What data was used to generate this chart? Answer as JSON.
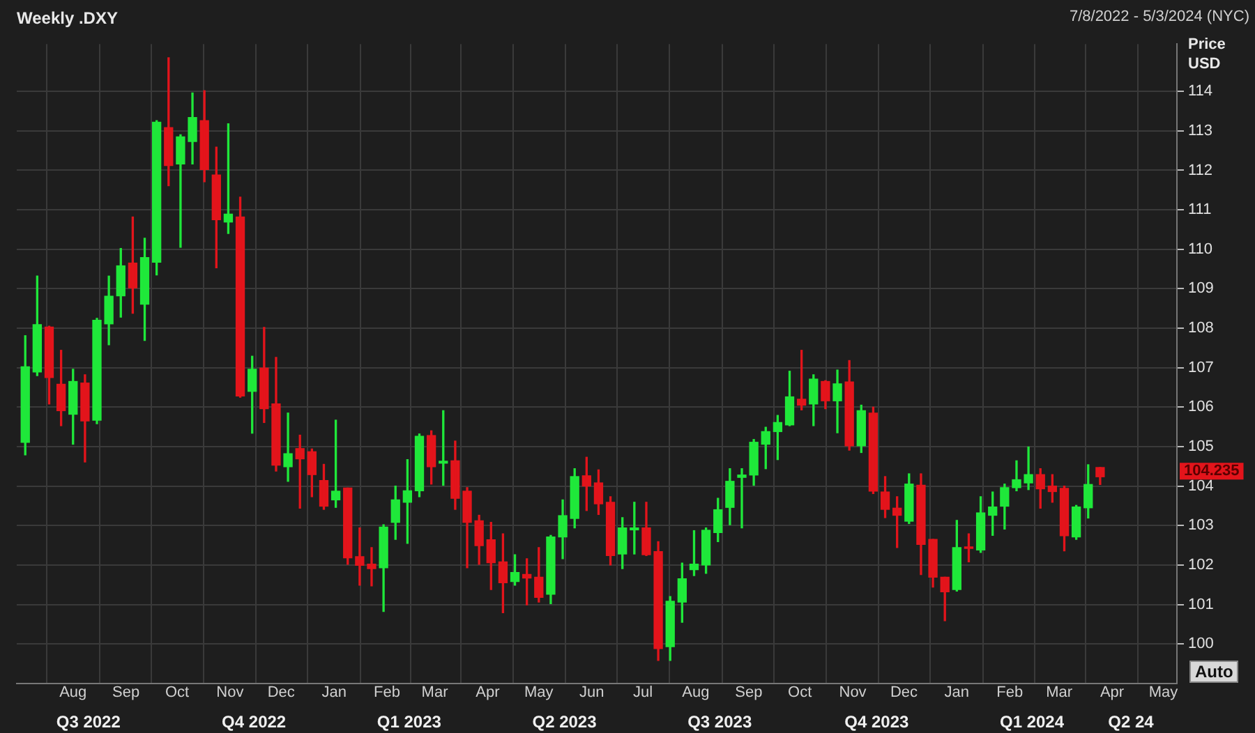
{
  "chart_data": {
    "type": "candlestick",
    "title": "Weekly .DXY",
    "subtitle": "7/8/2022 - 5/3/2024 (NYC)",
    "ylabel": "Price\nUSD",
    "x": [
      "2022-07-04",
      "2022-07-11",
      "2022-07-18",
      "2022-07-25",
      "2022-08-01",
      "2022-08-08",
      "2022-08-15",
      "2022-08-22",
      "2022-08-29",
      "2022-09-05",
      "2022-09-12",
      "2022-09-19",
      "2022-09-26",
      "2022-10-03",
      "2022-10-10",
      "2022-10-17",
      "2022-10-24",
      "2022-10-31",
      "2022-11-07",
      "2022-11-14",
      "2022-11-21",
      "2022-11-28",
      "2022-12-05",
      "2022-12-12",
      "2022-12-19",
      "2022-12-26",
      "2023-01-02",
      "2023-01-09",
      "2023-01-16",
      "2023-01-23",
      "2023-01-30",
      "2023-02-06",
      "2023-02-13",
      "2023-02-20",
      "2023-02-27",
      "2023-03-06",
      "2023-03-13",
      "2023-03-20",
      "2023-03-27",
      "2023-04-03",
      "2023-04-10",
      "2023-04-17",
      "2023-04-24",
      "2023-05-01",
      "2023-05-08",
      "2023-05-15",
      "2023-05-22",
      "2023-05-29",
      "2023-06-05",
      "2023-06-12",
      "2023-06-19",
      "2023-06-26",
      "2023-07-03",
      "2023-07-10",
      "2023-07-17",
      "2023-07-24",
      "2023-07-31",
      "2023-08-07",
      "2023-08-14",
      "2023-08-21",
      "2023-08-28",
      "2023-09-04",
      "2023-09-11",
      "2023-09-18",
      "2023-09-25",
      "2023-10-02",
      "2023-10-09",
      "2023-10-16",
      "2023-10-23",
      "2023-10-30",
      "2023-11-06",
      "2023-11-13",
      "2023-11-20",
      "2023-11-27",
      "2023-12-04",
      "2023-12-11",
      "2023-12-18",
      "2023-12-25",
      "2024-01-01",
      "2024-01-08",
      "2024-01-15",
      "2024-01-22",
      "2024-01-29",
      "2024-02-05",
      "2024-02-12",
      "2024-02-19",
      "2024-02-26",
      "2024-03-04",
      "2024-03-11",
      "2024-03-18",
      "2024-03-25"
    ],
    "ohlc": [
      [
        105.11,
        107.81,
        104.79,
        107.02
      ],
      [
        106.89,
        109.32,
        106.8,
        108.09
      ],
      [
        108.03,
        108.05,
        106.08,
        106.75
      ],
      [
        106.58,
        107.44,
        105.53,
        105.91
      ],
      [
        105.82,
        106.96,
        105.06,
        106.65
      ],
      [
        106.61,
        106.82,
        104.61,
        105.65
      ],
      [
        105.67,
        108.25,
        105.58,
        108.2
      ],
      [
        108.11,
        109.32,
        107.58,
        108.81
      ],
      [
        108.82,
        110.02,
        108.28,
        109.58
      ],
      [
        109.65,
        110.82,
        108.38,
        109.02
      ],
      [
        108.61,
        110.28,
        107.69,
        109.79
      ],
      [
        109.67,
        113.26,
        109.35,
        113.22
      ],
      [
        113.08,
        114.85,
        111.61,
        112.12
      ],
      [
        112.16,
        112.9,
        110.05,
        112.85
      ],
      [
        112.73,
        113.96,
        112.16,
        113.34
      ],
      [
        113.26,
        114.02,
        111.71,
        112.02
      ],
      [
        111.88,
        112.59,
        109.53,
        110.75
      ],
      [
        110.69,
        113.18,
        110.4,
        110.89
      ],
      [
        110.82,
        111.32,
        106.25,
        106.28
      ],
      [
        106.4,
        107.29,
        105.34,
        106.96
      ],
      [
        106.99,
        108.02,
        105.61,
        105.96
      ],
      [
        106.08,
        107.26,
        104.38,
        104.53
      ],
      [
        104.49,
        105.85,
        104.12,
        104.82
      ],
      [
        104.95,
        105.29,
        103.44,
        104.69
      ],
      [
        104.87,
        104.94,
        103.73,
        104.29
      ],
      [
        104.14,
        104.55,
        103.41,
        103.49
      ],
      [
        103.65,
        105.67,
        103.46,
        103.87
      ],
      [
        103.95,
        103.95,
        102.02,
        102.18
      ],
      [
        102.21,
        102.94,
        101.49,
        101.99
      ],
      [
        102.02,
        102.44,
        101.47,
        101.91
      ],
      [
        101.93,
        103.02,
        100.82,
        102.96
      ],
      [
        103.08,
        104.0,
        102.65,
        103.65
      ],
      [
        103.59,
        104.67,
        102.55,
        103.88
      ],
      [
        103.88,
        105.32,
        103.73,
        105.26
      ],
      [
        105.28,
        105.4,
        104.05,
        104.49
      ],
      [
        104.58,
        105.91,
        104.02,
        104.63
      ],
      [
        104.64,
        105.14,
        103.41,
        103.69
      ],
      [
        103.87,
        103.96,
        101.93,
        103.08
      ],
      [
        103.12,
        103.26,
        102.02,
        102.49
      ],
      [
        102.64,
        103.08,
        101.38,
        102.06
      ],
      [
        102.08,
        102.79,
        100.79,
        101.55
      ],
      [
        101.58,
        102.26,
        101.49,
        101.81
      ],
      [
        101.76,
        102.16,
        100.99,
        101.67
      ],
      [
        101.69,
        102.44,
        101.06,
        101.18
      ],
      [
        101.26,
        102.75,
        101.02,
        102.71
      ],
      [
        102.71,
        103.65,
        102.16,
        103.25
      ],
      [
        103.18,
        104.44,
        102.94,
        104.24
      ],
      [
        104.26,
        104.73,
        103.38,
        104.0
      ],
      [
        104.08,
        104.41,
        103.28,
        103.55
      ],
      [
        103.59,
        103.73,
        102.0,
        102.24
      ],
      [
        102.28,
        103.2,
        101.91,
        102.94
      ],
      [
        102.89,
        103.59,
        102.28,
        102.94
      ],
      [
        102.94,
        103.59,
        102.24,
        102.26
      ],
      [
        102.34,
        102.59,
        99.58,
        99.88
      ],
      [
        99.93,
        101.2,
        99.58,
        101.08
      ],
      [
        101.06,
        102.05,
        100.55,
        101.65
      ],
      [
        101.88,
        102.87,
        101.73,
        102.02
      ],
      [
        102.0,
        102.94,
        101.79,
        102.88
      ],
      [
        102.82,
        103.69,
        102.59,
        103.4
      ],
      [
        103.46,
        104.44,
        103.02,
        104.12
      ],
      [
        104.22,
        104.44,
        102.94,
        104.28
      ],
      [
        104.28,
        105.18,
        104.02,
        105.11
      ],
      [
        105.06,
        105.49,
        104.44,
        105.38
      ],
      [
        105.38,
        105.79,
        104.67,
        105.61
      ],
      [
        105.55,
        106.91,
        105.53,
        106.26
      ],
      [
        106.2,
        107.44,
        105.93,
        106.05
      ],
      [
        106.08,
        106.82,
        105.53,
        106.71
      ],
      [
        106.65,
        106.67,
        105.96,
        106.16
      ],
      [
        106.16,
        106.94,
        105.35,
        106.59
      ],
      [
        106.64,
        107.18,
        104.91,
        105.02
      ],
      [
        105.02,
        106.05,
        104.85,
        105.91
      ],
      [
        105.85,
        106.0,
        103.81,
        103.87
      ],
      [
        103.85,
        104.24,
        103.2,
        103.41
      ],
      [
        103.44,
        103.73,
        102.44,
        103.26
      ],
      [
        103.11,
        104.31,
        103.05,
        104.05
      ],
      [
        104.02,
        104.31,
        101.76,
        102.52
      ],
      [
        102.65,
        102.65,
        101.44,
        101.69
      ],
      [
        101.69,
        101.69,
        100.59,
        101.32
      ],
      [
        101.38,
        103.13,
        101.34,
        102.44
      ],
      [
        102.46,
        102.79,
        102.08,
        102.42
      ],
      [
        102.38,
        103.73,
        102.32,
        103.32
      ],
      [
        103.26,
        103.85,
        102.75,
        103.47
      ],
      [
        103.49,
        104.05,
        102.91,
        103.96
      ],
      [
        103.96,
        104.64,
        103.88,
        104.16
      ],
      [
        104.08,
        104.99,
        103.91,
        104.29
      ],
      [
        104.29,
        104.44,
        103.44,
        103.93
      ],
      [
        104.0,
        104.29,
        103.59,
        103.86
      ],
      [
        103.94,
        104.0,
        102.36,
        102.74
      ],
      [
        102.71,
        103.51,
        102.65,
        103.47
      ],
      [
        103.45,
        104.54,
        103.19,
        104.04
      ],
      [
        104.47,
        104.47,
        104.04,
        104.235
      ]
    ],
    "colors": [
      "#1fe83a",
      "#1fe83a",
      "#e3141b",
      "#e3141b",
      "#1fe83a",
      "#e3141b",
      "#1fe83a",
      "#1fe83a",
      "#1fe83a",
      "#e3141b",
      "#1fe83a",
      "#1fe83a",
      "#e3141b",
      "#1fe83a",
      "#1fe83a",
      "#e3141b",
      "#e3141b",
      "#1fe83a",
      "#e3141b",
      "#1fe83a",
      "#e3141b",
      "#e3141b",
      "#1fe83a",
      "#e3141b",
      "#e3141b",
      "#e3141b",
      "#1fe83a",
      "#e3141b",
      "#e3141b",
      "#e3141b",
      "#1fe83a",
      "#1fe83a",
      "#1fe83a",
      "#1fe83a",
      "#e3141b",
      "#1fe83a",
      "#e3141b",
      "#e3141b",
      "#e3141b",
      "#e3141b",
      "#e3141b",
      "#1fe83a",
      "#e3141b",
      "#e3141b",
      "#1fe83a",
      "#1fe83a",
      "#1fe83a",
      "#e3141b",
      "#e3141b",
      "#e3141b",
      "#1fe83a",
      "#1fe83a",
      "#e3141b",
      "#e3141b",
      "#1fe83a",
      "#1fe83a",
      "#1fe83a",
      "#1fe83a",
      "#1fe83a",
      "#1fe83a",
      "#1fe83a",
      "#1fe83a",
      "#1fe83a",
      "#1fe83a",
      "#1fe83a",
      "#e3141b",
      "#1fe83a",
      "#e3141b",
      "#1fe83a",
      "#e3141b",
      "#1fe83a",
      "#e3141b",
      "#e3141b",
      "#e3141b",
      "#1fe83a",
      "#e3141b",
      "#e3141b",
      "#e3141b",
      "#1fe83a",
      "#e3141b",
      "#1fe83a",
      "#1fe83a",
      "#1fe83a",
      "#1fe83a",
      "#1fe83a",
      "#e3141b",
      "#e3141b",
      "#e3141b",
      "#1fe83a",
      "#1fe83a",
      "#e3141b"
    ],
    "xlim": [
      "2022-06-29",
      "2024-05-09"
    ],
    "xticks": [
      {
        "value": "2022-08-01",
        "label": "Aug"
      },
      {
        "value": "2022-09-01",
        "label": "Sep"
      },
      {
        "value": "2022-10-01",
        "label": "Oct"
      },
      {
        "value": "2022-11-01",
        "label": "Nov"
      },
      {
        "value": "2022-12-01",
        "label": "Dec"
      },
      {
        "value": "2023-01-01",
        "label": "Jan"
      },
      {
        "value": "2023-02-01",
        "label": "Feb"
      },
      {
        "value": "2023-03-01",
        "label": "Mar"
      },
      {
        "value": "2023-04-01",
        "label": "Apr"
      },
      {
        "value": "2023-05-01",
        "label": "May"
      },
      {
        "value": "2023-06-01",
        "label": "Jun"
      },
      {
        "value": "2023-07-01",
        "label": "Jul"
      },
      {
        "value": "2023-08-01",
        "label": "Aug"
      },
      {
        "value": "2023-09-01",
        "label": "Sep"
      },
      {
        "value": "2023-10-01",
        "label": "Oct"
      },
      {
        "value": "2023-11-01",
        "label": "Nov"
      },
      {
        "value": "2023-12-01",
        "label": "Dec"
      },
      {
        "value": "2024-01-01",
        "label": "Jan"
      },
      {
        "value": "2024-02-01",
        "label": "Feb"
      },
      {
        "value": "2024-03-01",
        "label": "Mar"
      },
      {
        "value": "2024-04-01",
        "label": "Apr"
      },
      {
        "value": "2024-05-01",
        "label": "May"
      }
    ],
    "x2lim": [
      "2022-06-29",
      "2024-05-09"
    ],
    "x2ticks": [
      {
        "value": "2022-08-10",
        "label": "Q3 2022"
      },
      {
        "value": "2022-11-15",
        "label": "Q4 2022"
      },
      {
        "value": "2023-02-14",
        "label": "Q1 2023"
      },
      {
        "value": "2023-05-16",
        "label": "Q2 2023"
      },
      {
        "value": "2023-08-15",
        "label": "Q3 2023"
      },
      {
        "value": "2023-11-15",
        "label": "Q4 2023"
      },
      {
        "value": "2024-02-14",
        "label": "Q1 2024"
      },
      {
        "value": "2024-04-12",
        "label": "Q2 24"
      }
    ],
    "ylim": [
      99,
      115.2
    ],
    "yticks": [
      100,
      101,
      102,
      103,
      104,
      105,
      106,
      107,
      108,
      109,
      110,
      111,
      112,
      113,
      114
    ],
    "grid": true,
    "legend": false,
    "annotations": [
      "104.235",
      "Auto"
    ]
  }
}
